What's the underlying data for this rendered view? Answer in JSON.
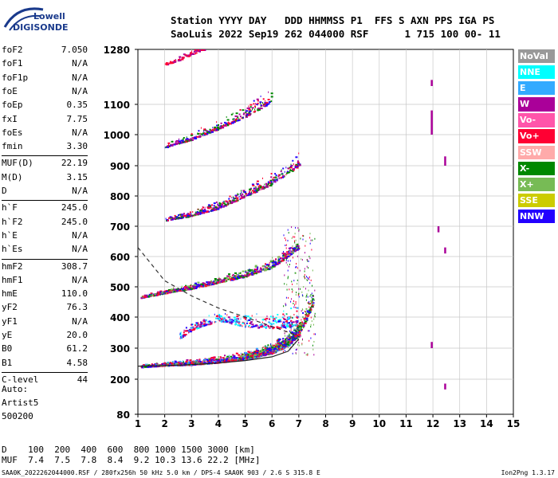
{
  "logo": {
    "top": "Lowell",
    "bottom": "DIGISONDE",
    "color": "#1a3a8c"
  },
  "header": {
    "line1": "Station YYYY DAY   DDD HHMMSS P1  FFS S AXN PPS IGA PS",
    "line2": "SaoLuis 2022 Sep19 262 044000 RSF      1 715 100 00- 11"
  },
  "params": [
    {
      "name": "foF2",
      "value": "7.050"
    },
    {
      "name": "foF1",
      "value": "N/A"
    },
    {
      "name": "foF1p",
      "value": "N/A"
    },
    {
      "name": "foE",
      "value": "N/A"
    },
    {
      "name": "foEp",
      "value": "0.35"
    },
    {
      "name": "fxI",
      "value": "7.75"
    },
    {
      "name": "foEs",
      "value": "N/A"
    },
    {
      "name": "fmin",
      "value": "3.30"
    },
    {
      "name": "MUF(D)",
      "value": "22.19"
    },
    {
      "name": "M(D)",
      "value": "3.15"
    },
    {
      "name": "D",
      "value": "N/A"
    },
    {
      "name": "h`F",
      "value": "245.0"
    },
    {
      "name": "h`F2",
      "value": "245.0"
    },
    {
      "name": "h`E",
      "value": "N/A"
    },
    {
      "name": "h`Es",
      "value": "N/A"
    },
    {
      "name": "hmF2",
      "value": "308.7"
    },
    {
      "name": "hmF1",
      "value": "N/A"
    },
    {
      "name": "hmE",
      "value": "110.0"
    },
    {
      "name": "yF2",
      "value": "76.3"
    },
    {
      "name": "yF1",
      "value": "N/A"
    },
    {
      "name": "yE",
      "value": "20.0"
    },
    {
      "name": "B0",
      "value": "61.2"
    },
    {
      "name": "B1",
      "value": "4.58"
    },
    {
      "name": "C-level",
      "value": "44"
    }
  ],
  "auto": {
    "line1": "Auto:",
    "line2": "Artist5",
    "line3": "500200"
  },
  "legend": [
    {
      "label": "NoVal",
      "color": "#999999"
    },
    {
      "label": "NNE",
      "color": "#00ffff"
    },
    {
      "label": "E",
      "color": "#33aaff"
    },
    {
      "label": "W",
      "color": "#aa0099"
    },
    {
      "label": "Vo-",
      "color": "#ff55aa"
    },
    {
      "label": "Vo+",
      "color": "#ff0033"
    },
    {
      "label": "SSW",
      "color": "#ffaaaa"
    },
    {
      "label": "X-",
      "color": "#008800"
    },
    {
      "label": "X+",
      "color": "#77bb55"
    },
    {
      "label": "SSE",
      "color": "#cccc00"
    },
    {
      "label": "NNW",
      "color": "#2200ff"
    }
  ],
  "bottom_table": {
    "line1": "D    100  200  400  600  800 1000 1500 3000 [km]",
    "line2": "MUF  7.4  7.5  7.8  8.4  9.2 10.3 13.6 22.2 [MHz]"
  },
  "footer": {
    "left": "SAA0K_2022262044000.RSF / 280fx256h 50 kHz 5.0 km / DPS-4 SAA0K 903 / 2.6 S 315.8 E",
    "right": "Ion2Png 1.3.17"
  },
  "chart_data": {
    "type": "scatter",
    "title": "",
    "xlabel": "",
    "ylabel": "",
    "xlim": [
      1,
      15
    ],
    "ylim": [
      80,
      1280
    ],
    "xticks": [
      "1",
      "2",
      "3",
      "4",
      "5",
      "6",
      "7",
      "8",
      "9",
      "10",
      "11",
      "12",
      "13",
      "14",
      "15"
    ],
    "yticks": [
      "80",
      "200",
      "300",
      "400",
      "500",
      "600",
      "700",
      "800",
      "900",
      "1000",
      "1100",
      "1280"
    ],
    "y_scale": "piecewise-log",
    "grid": true,
    "legend_position": "right",
    "traces": [
      {
        "name": "O-trace h'F",
        "freq_mhz": [
          1.1,
          2.0,
          3.0,
          4.0,
          5.0,
          6.0,
          6.6,
          7.0
        ],
        "height_km": [
          240,
          245,
          248,
          255,
          265,
          285,
          310,
          345
        ]
      },
      {
        "name": "X-trace",
        "freq_mhz": [
          5.0,
          6.0,
          6.8,
          7.2,
          7.5
        ],
        "height_km": [
          270,
          295,
          330,
          380,
          440
        ]
      },
      {
        "name": "2nd multiple",
        "freq_mhz": [
          1.1,
          2.0,
          3.0,
          4.0,
          5.0,
          6.0,
          7.0
        ],
        "height_km": [
          465,
          480,
          495,
          515,
          535,
          565,
          630
        ]
      },
      {
        "name": "3rd multiple",
        "freq_mhz": [
          2.0,
          3.0,
          4.0,
          5.0,
          6.0,
          7.0
        ],
        "height_km": [
          720,
          735,
          760,
          800,
          840,
          900
        ]
      },
      {
        "name": "4th multiple",
        "freq_mhz": [
          2.0,
          3.0,
          4.0,
          5.0,
          6.0
        ],
        "height_km": [
          960,
          985,
          1020,
          1060,
          1110
        ]
      },
      {
        "name": "5th multiple",
        "freq_mhz": [
          2.0,
          2.5,
          3.0,
          3.5
        ],
        "height_km": [
          1230,
          1245,
          1265,
          1280
        ]
      },
      {
        "name": "Es/spread",
        "freq_mhz": [
          2.5,
          3.0,
          4.0,
          5.0,
          6.0,
          7.0
        ],
        "height_km": [
          330,
          360,
          390,
          370,
          365,
          375
        ]
      }
    ],
    "profile_curve": {
      "freq_mhz": [
        1.0,
        2.0,
        3.0,
        4.0,
        5.0,
        6.0,
        6.8,
        7.05
      ],
      "height_km": [
        630,
        520,
        470,
        430,
        400,
        370,
        345,
        335
      ]
    },
    "fit_curve": {
      "freq_mhz": [
        1.0,
        2.0,
        3.0,
        4.0,
        5.0,
        6.0,
        6.6,
        7.0
      ],
      "height_km": [
        242,
        244,
        247,
        252,
        260,
        272,
        290,
        330
      ]
    },
    "vertical_streaks": [
      {
        "freq_mhz": 11.95,
        "height_km_range": [
          1000,
          1080
        ],
        "color": "#aa0099"
      },
      {
        "freq_mhz": 11.95,
        "height_km_range": [
          1160,
          1180
        ],
        "color": "#aa0099"
      },
      {
        "freq_mhz": 12.2,
        "height_km_range": [
          680,
          700
        ],
        "color": "#aa0099"
      },
      {
        "freq_mhz": 12.45,
        "height_km_range": [
          610,
          630
        ],
        "color": "#aa0099"
      },
      {
        "freq_mhz": 12.45,
        "height_km_range": [
          900,
          930
        ],
        "color": "#aa0099"
      },
      {
        "freq_mhz": 11.95,
        "height_km_range": [
          300,
          320
        ],
        "color": "#aa0099"
      },
      {
        "freq_mhz": 12.45,
        "height_km_range": [
          165,
          185
        ],
        "color": "#aa0099"
      }
    ]
  }
}
